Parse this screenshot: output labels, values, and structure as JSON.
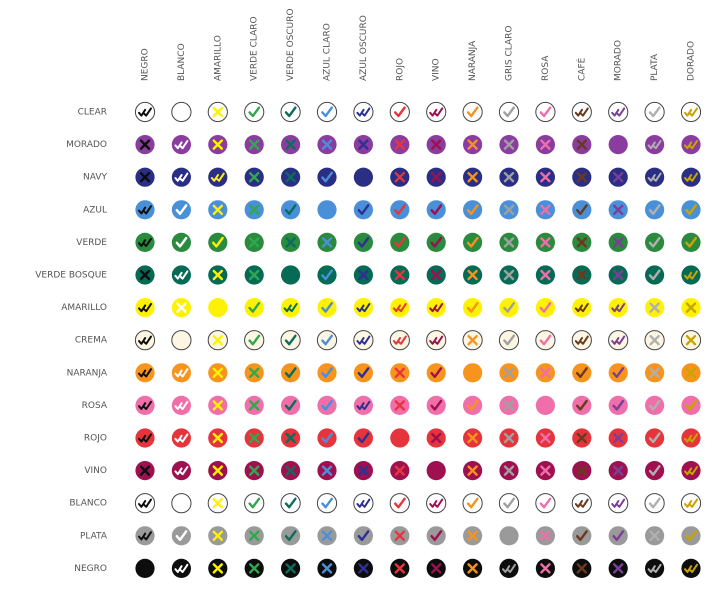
{
  "columns": [
    {
      "label": "NEGRO",
      "color": "#0d0d0d"
    },
    {
      "label": "BLANCO",
      "color": "#ffffff"
    },
    {
      "label": "AMARILLO",
      "color": "#fff200"
    },
    {
      "label": "VERDE CLARO",
      "color": "#2fa84f"
    },
    {
      "label": "VERDE OSCURO",
      "color": "#0a6e5a"
    },
    {
      "label": "AZUL CLARO",
      "color": "#4a90d9"
    },
    {
      "label": "AZUL OSCURO",
      "color": "#2e3192"
    },
    {
      "label": "ROJO",
      "color": "#e8343c"
    },
    {
      "label": "VINO",
      "color": "#9e1050"
    },
    {
      "label": "NARANJA",
      "color": "#f7921e"
    },
    {
      "label": "GRIS CLARO",
      "color": "#a0a0a0"
    },
    {
      "label": "ROSA",
      "color": "#f06ea9"
    },
    {
      "label": "CAFÉ",
      "color": "#6b3a1e"
    },
    {
      "label": "MORADO",
      "color": "#7b3f98"
    },
    {
      "label": "PLATA",
      "color": "#b0b0b0"
    },
    {
      "label": "DORADO",
      "color": "#c8a400"
    }
  ],
  "rows": [
    {
      "label": "CLEAR",
      "color": "#ffffff",
      "outlined": true,
      "marks": [
        "dc",
        "e",
        "x",
        "c",
        "c",
        "c",
        "dc",
        "c",
        "dc",
        "c",
        "c",
        "c",
        "dc",
        "dc",
        "c",
        "dc"
      ]
    },
    {
      "label": "MORADO",
      "color": "#8a3d9e",
      "outlined": false,
      "marks": [
        "x",
        "dc",
        "x",
        "x",
        "x",
        "x",
        "x",
        "x",
        "x",
        "x",
        "x",
        "x",
        "x",
        "e",
        "dc",
        "dc"
      ]
    },
    {
      "label": "NAVY",
      "color": "#2a2f85",
      "outlined": false,
      "marks": [
        "x",
        "dc",
        "dc",
        "x",
        "x",
        "c",
        "e",
        "x",
        "x",
        "x",
        "x",
        "x",
        "x",
        "x",
        "dc",
        "dc"
      ]
    },
    {
      "label": "AZUL",
      "color": "#4a90d9",
      "outlined": false,
      "marks": [
        "dc",
        "c",
        "x",
        "x",
        "c",
        "e",
        "c",
        "c",
        "c",
        "c",
        "x",
        "x",
        "c",
        "x",
        "c",
        "c"
      ]
    },
    {
      "label": "VERDE",
      "color": "#2a8a3e",
      "outlined": false,
      "marks": [
        "dc",
        "c",
        "c",
        "x",
        "x",
        "x",
        "c",
        "c",
        "c",
        "c",
        "x",
        "x",
        "x",
        "x",
        "c",
        "c"
      ]
    },
    {
      "label": "VERDE BOSQUE",
      "color": "#056b55",
      "outlined": false,
      "marks": [
        "x",
        "dc",
        "x",
        "x",
        "e",
        "c",
        "x",
        "x",
        "x",
        "x",
        "x",
        "x",
        "x",
        "x",
        "c",
        "dc"
      ]
    },
    {
      "label": "AMARILLO",
      "color": "#fff200",
      "outlined": false,
      "marks": [
        "dc",
        "x",
        "e",
        "c",
        "dc",
        "c",
        "dc",
        "dc",
        "dc",
        "c",
        "c",
        "c",
        "dc",
        "dc",
        "x",
        "x"
      ]
    },
    {
      "label": "CREMA",
      "color": "#fdf6e3",
      "outlined": true,
      "marks": [
        "dc",
        "e",
        "x",
        "c",
        "c",
        "c",
        "dc",
        "dc",
        "dc",
        "x",
        "c",
        "c",
        "dc",
        "dc",
        "x",
        "x"
      ]
    },
    {
      "label": "NARANJA",
      "color": "#f7941d",
      "outlined": false,
      "marks": [
        "dc",
        "dc",
        "x",
        "x",
        "c",
        "c",
        "c",
        "x",
        "c",
        "e",
        "x",
        "x",
        "c",
        "c",
        "x",
        "x"
      ]
    },
    {
      "label": "ROSA",
      "color": "#f06ea9",
      "outlined": false,
      "marks": [
        "dc",
        "dc",
        "x",
        "x",
        "c",
        "c",
        "dc",
        "x",
        "c",
        "c",
        "x",
        "e",
        "c",
        "c",
        "c",
        "c"
      ]
    },
    {
      "label": "ROJO",
      "color": "#e5343c",
      "outlined": false,
      "marks": [
        "dc",
        "dc",
        "x",
        "x",
        "x",
        "c",
        "c",
        "e",
        "x",
        "x",
        "x",
        "x",
        "x",
        "x",
        "c",
        "dc"
      ]
    },
    {
      "label": "VINO",
      "color": "#9e1050",
      "outlined": false,
      "marks": [
        "x",
        "dc",
        "x",
        "x",
        "x",
        "x",
        "x",
        "x",
        "e",
        "x",
        "x",
        "x",
        "x",
        "x",
        "c",
        "dc"
      ]
    },
    {
      "label": "BLANCO",
      "color": "#ffffff",
      "outlined": true,
      "marks": [
        "dc",
        "e",
        "x",
        "c",
        "c",
        "c",
        "dc",
        "c",
        "dc",
        "c",
        "c",
        "c",
        "dc",
        "dc",
        "c",
        "dc"
      ]
    },
    {
      "label": "PLATA",
      "color": "#9a9a9a",
      "outlined": false,
      "marks": [
        "dc",
        "c",
        "x",
        "x",
        "c",
        "x",
        "c",
        "x",
        "c",
        "x",
        "e",
        "x",
        "c",
        "c",
        "x",
        "c"
      ]
    },
    {
      "label": "NEGRO",
      "color": "#0d0d0d",
      "outlined": false,
      "marks": [
        "e",
        "dc",
        "x",
        "x",
        "x",
        "x",
        "x",
        "x",
        "x",
        "x",
        "dc",
        "x",
        "x",
        "x",
        "dc",
        "dc"
      ]
    }
  ]
}
